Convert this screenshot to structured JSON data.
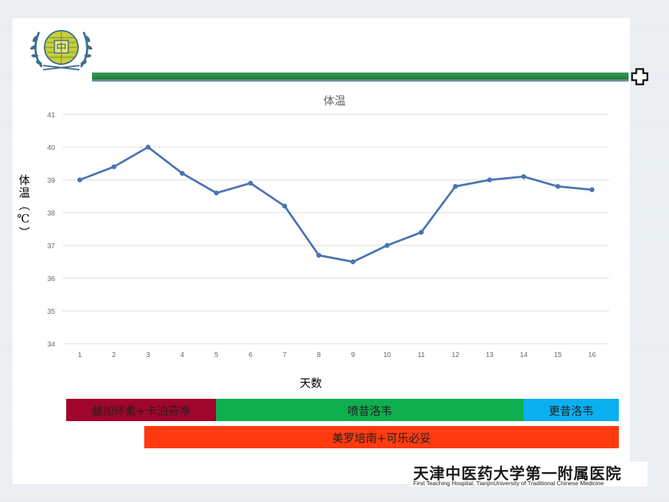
{
  "chart_data": {
    "type": "line",
    "title": "体温",
    "xlabel": "天数",
    "ylabel": "体温（℃）",
    "x": [
      1,
      2,
      3,
      4,
      5,
      6,
      7,
      8,
      9,
      10,
      11,
      12,
      13,
      14,
      15,
      16
    ],
    "series": [
      {
        "values": [
          39.0,
          39.4,
          40.0,
          39.2,
          38.6,
          38.9,
          38.2,
          36.7,
          36.5,
          37.0,
          37.4,
          38.8,
          39.0,
          39.1,
          38.8,
          38.7
        ]
      }
    ],
    "yticks": [
      34,
      35,
      36,
      37,
      38,
      39,
      40,
      41
    ],
    "ylim": [
      34,
      41
    ],
    "grid": true,
    "line_color": "#4a74b4",
    "grid_color": "#d9d9d9"
  },
  "medications": [
    {
      "label": "替加环素+卡泊芬净",
      "color": "#a0052b"
    },
    {
      "label": "喷昔洛韦",
      "color": "#0fae4f"
    },
    {
      "label": "更昔洛韦",
      "color": "#0aaff0"
    },
    {
      "label": "美罗培南+可乐必妥",
      "color": "#ff3a10"
    }
  ],
  "footer": {
    "name_cn": "天津中医药大学第一附属医院",
    "name_en": "First Teaching Hospital, TianjinUniversity of Traditional Chinese Medicine"
  },
  "logo": {
    "icon": "hospital-emblem-icon",
    "text": "中"
  },
  "accent_color": "#1f7a3e"
}
